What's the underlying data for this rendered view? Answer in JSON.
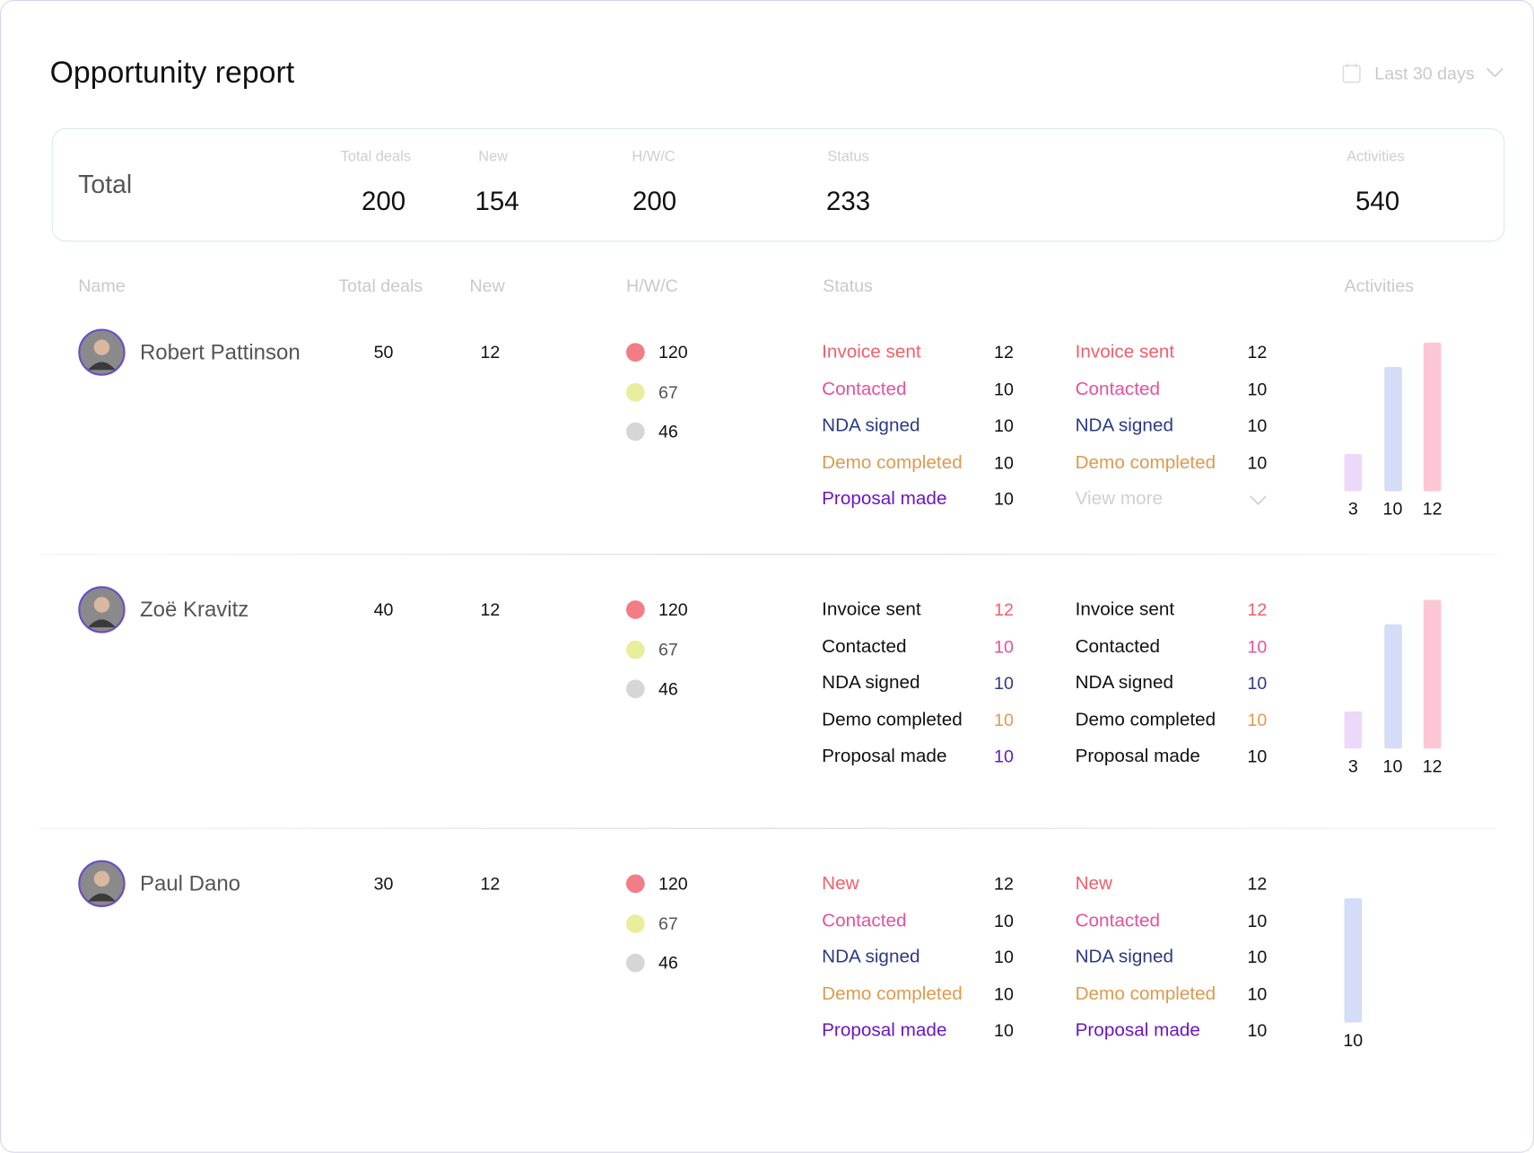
{
  "header": {
    "title": "Opportunity report",
    "date_range": "Last 30 days"
  },
  "totals": {
    "label": "Total",
    "columns": [
      {
        "label": "Total deals",
        "value": 200
      },
      {
        "label": "New",
        "value": 154
      },
      {
        "label": "H/W/C",
        "value": 200
      },
      {
        "label": "Status",
        "value": 233
      },
      {
        "label": "Activities",
        "value": 540
      }
    ]
  },
  "table": {
    "columns": [
      "Name",
      "Total deals",
      "New",
      "H/W/C",
      "Status",
      "Activities"
    ],
    "hwc_colors": [
      "#f47c84",
      "#e8ee9c",
      "#d6d6d6"
    ],
    "status_colors": {
      "Invoice sent": "#f0606a",
      "New": "#f0606a",
      "Contacted": "#e4519e",
      "NDA signed": "#2b3a86",
      "Demo completed": "#dc9a50",
      "Proposal made": "#6c16c4"
    },
    "rows": [
      {
        "name": "Robert Pattinson",
        "total_deals": 50,
        "new": 12,
        "hwc": [
          120,
          67,
          46
        ],
        "status_left": [
          {
            "label": "Invoice sent",
            "value": 12,
            "highlight": "label"
          },
          {
            "label": "Contacted",
            "value": 10,
            "highlight": "label"
          },
          {
            "label": "NDA signed",
            "value": 10,
            "highlight": "label"
          },
          {
            "label": "Demo completed",
            "value": 10,
            "highlight": "label"
          },
          {
            "label": "Proposal made",
            "value": 10,
            "highlight": "label"
          }
        ],
        "status_right": [
          {
            "label": "Invoice sent",
            "value": 12,
            "highlight": "label"
          },
          {
            "label": "Contacted",
            "value": 10,
            "highlight": "label"
          },
          {
            "label": "NDA signed",
            "value": 10,
            "highlight": "label"
          },
          {
            "label": "Demo completed",
            "value": 10,
            "highlight": "label"
          }
        ],
        "view_more": "View more",
        "activities": [
          {
            "value": 3,
            "color": "#ecd8f8"
          },
          {
            "value": 10,
            "color": "#d5dcf8"
          },
          {
            "value": 12,
            "color": "#fcc7d5"
          }
        ]
      },
      {
        "name": "Zoë Kravitz",
        "total_deals": 40,
        "new": 12,
        "hwc": [
          120,
          67,
          46
        ],
        "status_left": [
          {
            "label": "Invoice sent",
            "value": 12,
            "highlight": "value"
          },
          {
            "label": "Contacted",
            "value": 10,
            "highlight": "value"
          },
          {
            "label": "NDA signed",
            "value": 10,
            "highlight": "value"
          },
          {
            "label": "Demo completed",
            "value": 10,
            "highlight": "value"
          },
          {
            "label": "Proposal made",
            "value": 10,
            "highlight": "value"
          }
        ],
        "status_right": [
          {
            "label": "Invoice sent",
            "value": 12,
            "highlight": "value"
          },
          {
            "label": "Contacted",
            "value": 10,
            "highlight": "value"
          },
          {
            "label": "NDA signed",
            "value": 10,
            "highlight": "value"
          },
          {
            "label": "Demo completed",
            "value": 10,
            "highlight": "value"
          },
          {
            "label": "Proposal made",
            "value": 10,
            "highlight": "none"
          }
        ],
        "activities": [
          {
            "value": 3,
            "color": "#ecd8f8"
          },
          {
            "value": 10,
            "color": "#d5dcf8"
          },
          {
            "value": 12,
            "color": "#fcc7d5"
          }
        ]
      },
      {
        "name": "Paul Dano",
        "total_deals": 30,
        "new": 12,
        "hwc": [
          120,
          67,
          46
        ],
        "status_left": [
          {
            "label": "New",
            "value": 12,
            "highlight": "label"
          },
          {
            "label": "Contacted",
            "value": 10,
            "highlight": "label"
          },
          {
            "label": "NDA signed",
            "value": 10,
            "highlight": "label"
          },
          {
            "label": "Demo completed",
            "value": 10,
            "highlight": "label"
          },
          {
            "label": "Proposal made",
            "value": 10,
            "highlight": "label"
          }
        ],
        "status_right": [
          {
            "label": "New",
            "value": 12,
            "highlight": "label"
          },
          {
            "label": "Contacted",
            "value": 10,
            "highlight": "label"
          },
          {
            "label": "NDA signed",
            "value": 10,
            "highlight": "label"
          },
          {
            "label": "Demo completed",
            "value": 10,
            "highlight": "label"
          },
          {
            "label": "Proposal made",
            "value": 10,
            "highlight": "label"
          }
        ],
        "activities": [
          {
            "value": 10,
            "color": "#d5dcf8"
          }
        ]
      }
    ]
  }
}
